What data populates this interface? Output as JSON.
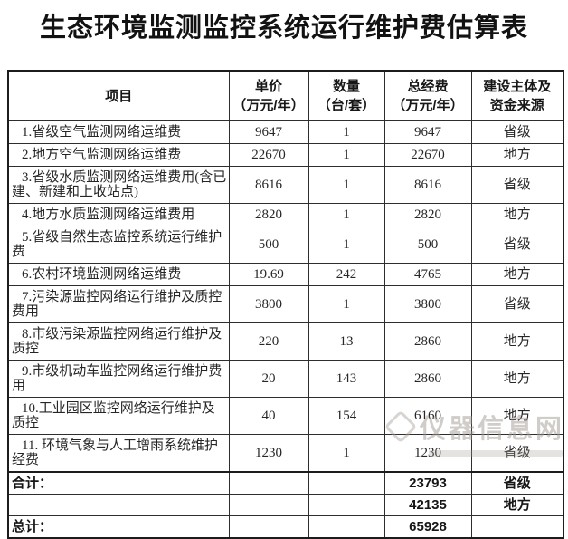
{
  "title": "生态环境监测监控系统运行维护费估算表",
  "table": {
    "headers": [
      {
        "line1": "项目",
        "line2": ""
      },
      {
        "line1": "单价",
        "line2": "（万元/年）"
      },
      {
        "line1": "数量",
        "line2": "（台/套）"
      },
      {
        "line1": "总经费",
        "line2": "（万元/年）"
      },
      {
        "line1": "建设主体及",
        "line2": "资金来源"
      }
    ],
    "rows": [
      {
        "item": "1.省级空气监测网络运维费",
        "unit_price": "9647",
        "quantity": "1",
        "total": "9647",
        "source": "省级"
      },
      {
        "item": "2.地方空气监测网络运维费",
        "unit_price": "22670",
        "quantity": "1",
        "total": "22670",
        "source": "地方"
      },
      {
        "item": "3.省级水质监测网络运维费用(含已建、新建和上收站点)",
        "unit_price": "8616",
        "quantity": "1",
        "total": "8616",
        "source": "省级"
      },
      {
        "item": "4.地方水质监测网络运维费用",
        "unit_price": "2820",
        "quantity": "1",
        "total": "2820",
        "source": "地方"
      },
      {
        "item": "5.省级自然生态监控系统运行维护费",
        "unit_price": "500",
        "quantity": "1",
        "total": "500",
        "source": "省级"
      },
      {
        "item": "6.农村环境监测网络运维费",
        "unit_price": "19.69",
        "quantity": "242",
        "total": "4765",
        "source": "地方"
      },
      {
        "item": "7.污染源监控网络运行维护及质控费用",
        "unit_price": "3800",
        "quantity": "1",
        "total": "3800",
        "source": "省级"
      },
      {
        "item": "8.市级污染源监控网络运行维护及质控",
        "unit_price": "220",
        "quantity": "13",
        "total": "2860",
        "source": "地方"
      },
      {
        "item": "9.市级机动车监控网络运行维护费用",
        "unit_price": "20",
        "quantity": "143",
        "total": "2860",
        "source": "地方"
      },
      {
        "item": "10.工业园区监控网络运行维护及质控",
        "unit_price": "40",
        "quantity": "154",
        "total": "6160",
        "source": "地方"
      },
      {
        "item": "11. 环境气象与人工增雨系统维护经费",
        "unit_price": "1230",
        "quantity": "1",
        "total": "1230",
        "source": "省级"
      }
    ],
    "summary_rows": [
      {
        "label": "合计：",
        "unit_price": "",
        "quantity": "",
        "total": "23793",
        "source": "省级"
      },
      {
        "label": "",
        "unit_price": "",
        "quantity": "",
        "total": "42135",
        "source": "地方"
      },
      {
        "label": "总计：",
        "unit_price": "",
        "quantity": "",
        "total": "65928",
        "source": ""
      }
    ]
  },
  "watermark": {
    "text": "仪器信息网"
  }
}
